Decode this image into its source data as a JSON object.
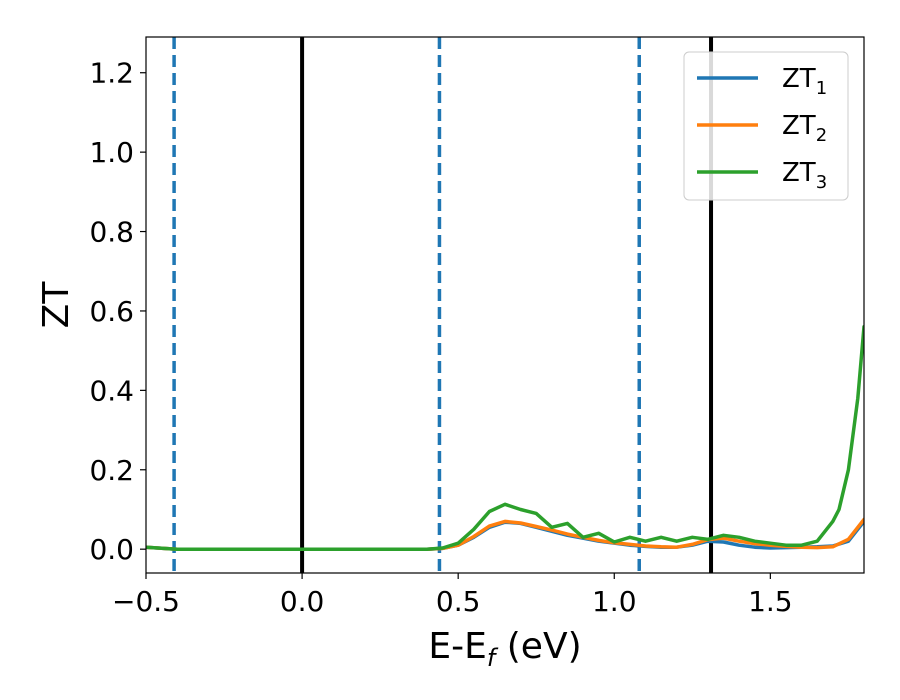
{
  "chart_data": {
    "type": "line",
    "xlabel": "E-E",
    "xlabel_sub": "f",
    "xlabel_unit": " (eV)",
    "ylabel": "ZT",
    "xlim": [
      -0.5,
      1.8
    ],
    "ylim": [
      -0.06,
      1.29
    ],
    "xticks": [
      -0.5,
      0.0,
      0.5,
      1.0,
      1.5
    ],
    "xtick_labels": [
      "−0.5",
      "0.0",
      "0.5",
      "1.0",
      "1.5"
    ],
    "yticks": [
      0.0,
      0.2,
      0.4,
      0.6,
      0.8,
      1.0,
      1.2
    ],
    "ytick_labels": [
      "0.0",
      "0.2",
      "0.4",
      "0.6",
      "0.8",
      "1.0",
      "1.2"
    ],
    "grid": false,
    "legend_position": "top-right",
    "vlines": [
      {
        "x": -0.41,
        "style": "dashed",
        "color": "#1f77b4"
      },
      {
        "x": 0.0,
        "style": "solid",
        "color": "#000000"
      },
      {
        "x": 0.44,
        "style": "dashed",
        "color": "#1f77b4"
      },
      {
        "x": 1.08,
        "style": "dashed",
        "color": "#1f77b4"
      },
      {
        "x": 1.31,
        "style": "solid",
        "color": "#000000"
      }
    ],
    "series": [
      {
        "name": "ZT",
        "sub": "1",
        "color": "#1f77b4",
        "x": [
          -0.5,
          -0.4,
          -0.2,
          0.0,
          0.2,
          0.4,
          0.45,
          0.5,
          0.55,
          0.6,
          0.65,
          0.7,
          0.75,
          0.8,
          0.85,
          0.9,
          0.95,
          1.0,
          1.05,
          1.1,
          1.15,
          1.2,
          1.25,
          1.3,
          1.35,
          1.4,
          1.45,
          1.5,
          1.55,
          1.6,
          1.65,
          1.7,
          1.75,
          1.8
        ],
        "y": [
          0.005,
          0.0,
          0.0,
          0.0,
          0.0,
          0.0,
          0.002,
          0.01,
          0.03,
          0.055,
          0.068,
          0.065,
          0.055,
          0.045,
          0.035,
          0.028,
          0.02,
          0.015,
          0.01,
          0.007,
          0.005,
          0.005,
          0.01,
          0.02,
          0.018,
          0.01,
          0.005,
          0.003,
          0.004,
          0.005,
          0.006,
          0.008,
          0.02,
          0.07
        ]
      },
      {
        "name": "ZT",
        "sub": "2",
        "color": "#ff7f0e",
        "x": [
          -0.5,
          -0.4,
          -0.2,
          0.0,
          0.2,
          0.4,
          0.45,
          0.5,
          0.55,
          0.6,
          0.65,
          0.7,
          0.75,
          0.8,
          0.85,
          0.9,
          0.95,
          1.0,
          1.05,
          1.1,
          1.15,
          1.2,
          1.25,
          1.3,
          1.35,
          1.4,
          1.45,
          1.5,
          1.55,
          1.6,
          1.65,
          1.7,
          1.75,
          1.8
        ],
        "y": [
          0.005,
          0.0,
          0.0,
          0.0,
          0.0,
          0.0,
          0.002,
          0.01,
          0.032,
          0.058,
          0.07,
          0.066,
          0.057,
          0.048,
          0.038,
          0.03,
          0.022,
          0.016,
          0.012,
          0.008,
          0.006,
          0.005,
          0.012,
          0.024,
          0.028,
          0.02,
          0.014,
          0.01,
          0.007,
          0.005,
          0.004,
          0.006,
          0.025,
          0.075
        ]
      },
      {
        "name": "ZT",
        "sub": "3",
        "color": "#2ca02c",
        "x": [
          -0.5,
          -0.4,
          -0.2,
          0.0,
          0.2,
          0.4,
          0.45,
          0.5,
          0.55,
          0.6,
          0.65,
          0.7,
          0.75,
          0.8,
          0.85,
          0.9,
          0.95,
          1.0,
          1.05,
          1.1,
          1.15,
          1.2,
          1.25,
          1.3,
          1.35,
          1.4,
          1.45,
          1.5,
          1.55,
          1.6,
          1.65,
          1.7,
          1.72,
          1.75,
          1.78,
          1.8
        ],
        "y": [
          0.005,
          0.0,
          0.0,
          0.0,
          0.0,
          0.0,
          0.003,
          0.015,
          0.05,
          0.095,
          0.113,
          0.1,
          0.09,
          0.055,
          0.065,
          0.03,
          0.04,
          0.018,
          0.03,
          0.02,
          0.03,
          0.02,
          0.03,
          0.025,
          0.035,
          0.03,
          0.02,
          0.015,
          0.01,
          0.01,
          0.02,
          0.07,
          0.1,
          0.2,
          0.38,
          0.56
        ]
      }
    ]
  }
}
